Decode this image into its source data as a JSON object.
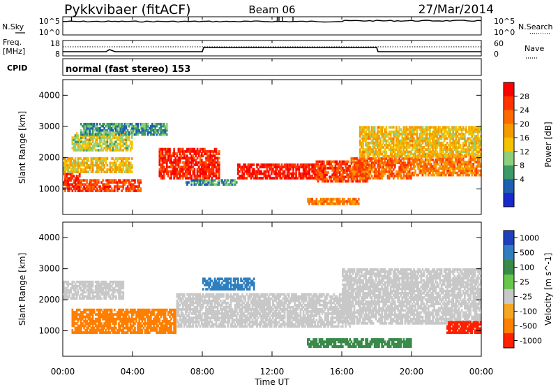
{
  "header": {
    "station": "Pykkvibaer (fitACF)",
    "beam": "Beam 06",
    "date": "27/Mar/2014"
  },
  "top_panels": {
    "nsky_label": "N.Sky",
    "nsearch_label": "N.Search",
    "noise_ticks": [
      "10^5",
      "10^0"
    ],
    "freq_label": "Freq.",
    "freq_unit": "[MHz]",
    "freq_ticks": [
      "18",
      "8"
    ],
    "nave_label": "Nave",
    "nave_ticks": [
      "60",
      "0"
    ],
    "cpid_label": "CPID",
    "cpid_text": "normal (fast stereo) 153"
  },
  "axes": {
    "x_label": "Time UT",
    "x_ticks": [
      "00:00",
      "04:00",
      "08:00",
      "12:00",
      "16:00",
      "20:00",
      "00:00"
    ],
    "y_label": "Slant Range [km]",
    "y_ticks": [
      "1000",
      "2000",
      "3000",
      "4000"
    ]
  },
  "power_scale": {
    "label": "Power [dB]",
    "ticks": [
      "28",
      "24",
      "20",
      "16",
      "12",
      "8",
      "4"
    ],
    "colors": [
      "#ff0000",
      "#ff3300",
      "#ff6a00",
      "#f79a00",
      "#f5c200",
      "#8ed07a",
      "#3c9a66",
      "#1f5fb0",
      "#1b28cc"
    ]
  },
  "velocity_scale": {
    "label": "Velocity [m s^-1]",
    "ticks": [
      "1000",
      "500",
      "100",
      "25",
      "-25",
      "-100",
      "-500",
      "-1000"
    ],
    "colors": [
      "#1f3fbf",
      "#2f7fc0",
      "#3a8a4a",
      "#66c84a",
      "#c8c8c8",
      "#f5a623",
      "#ff7f00",
      "#ff2000"
    ]
  },
  "chart_data": {
    "type": "heatmap",
    "x_range_hours": [
      0,
      24
    ],
    "y_range_km": [
      180,
      4500
    ],
    "panels": [
      {
        "name": "power",
        "ylabel": "Slant Range [km]",
        "colorbar": "Power [dB]",
        "regions": [
          {
            "t0": 0,
            "t1": 1,
            "r0": 900,
            "r1": 1500,
            "v": 26
          },
          {
            "t0": 1,
            "t1": 4.5,
            "r0": 900,
            "r1": 1300,
            "v": 24
          },
          {
            "t0": 0,
            "t1": 4,
            "r0": 1500,
            "r1": 2000,
            "v": 16
          },
          {
            "t0": 0.5,
            "t1": 4,
            "r0": 2200,
            "r1": 2800,
            "v": 13
          },
          {
            "t0": 1,
            "t1": 6,
            "r0": 2700,
            "r1": 3100,
            "v": 8
          },
          {
            "t0": 5.5,
            "t1": 9,
            "r0": 1300,
            "r1": 2300,
            "v": 26
          },
          {
            "t0": 7,
            "t1": 10,
            "r0": 1100,
            "r1": 1300,
            "v": 8
          },
          {
            "t0": 10,
            "t1": 15,
            "r0": 1300,
            "r1": 1800,
            "v": 27
          },
          {
            "t0": 14.5,
            "t1": 17.5,
            "r0": 1200,
            "r1": 1900,
            "v": 24
          },
          {
            "t0": 16.5,
            "t1": 20,
            "r0": 1300,
            "r1": 2000,
            "v": 22
          },
          {
            "t0": 20,
            "t1": 24,
            "r0": 1400,
            "r1": 2100,
            "v": 20
          },
          {
            "t0": 17,
            "t1": 24,
            "r0": 2000,
            "r1": 3000,
            "v": 16
          },
          {
            "t0": 14,
            "t1": 17,
            "r0": 480,
            "r1": 700,
            "v": 20
          }
        ]
      },
      {
        "name": "velocity",
        "ylabel": "Slant Range [km]",
        "colorbar": "Velocity [m s^-1]",
        "regions": [
          {
            "t0": 0,
            "t1": 3.5,
            "r0": 2000,
            "r1": 2600,
            "v": 0
          },
          {
            "t0": 0.5,
            "t1": 6.5,
            "r0": 900,
            "r1": 1700,
            "v": -150
          },
          {
            "t0": 6.5,
            "t1": 16.5,
            "r0": 1100,
            "r1": 2200,
            "v": 0
          },
          {
            "t0": 8,
            "t1": 11,
            "r0": 2300,
            "r1": 2700,
            "v": 600
          },
          {
            "t0": 16,
            "t1": 24,
            "r0": 1200,
            "r1": 3000,
            "v": 0
          },
          {
            "t0": 14,
            "t1": 20,
            "r0": 450,
            "r1": 750,
            "v": 250
          },
          {
            "t0": 22,
            "t1": 24,
            "r0": 900,
            "r1": 1300,
            "v": -600
          }
        ]
      }
    ]
  }
}
